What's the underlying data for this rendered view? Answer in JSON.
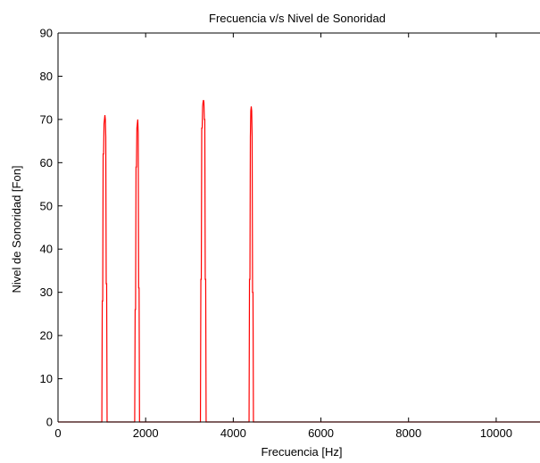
{
  "chart_data": {
    "type": "line",
    "title": "Frecuencia v/s Nivel de Sonoridad",
    "xlabel": "Frecuencia [Hz]",
    "ylabel": "Nivel de Sonoridad [Fon]",
    "xlim": [
      0,
      11000
    ],
    "ylim": [
      0,
      90
    ],
    "xticks": [
      0,
      2000,
      4000,
      6000,
      8000,
      10000
    ],
    "xtick_labels": [
      "0",
      "2000",
      "4000",
      "6000",
      "8000",
      "10000"
    ],
    "yticks": [
      0,
      10,
      20,
      30,
      40,
      50,
      60,
      70,
      80,
      90
    ],
    "ytick_labels": [
      "0",
      "10",
      "20",
      "30",
      "40",
      "50",
      "60",
      "70",
      "80",
      "90"
    ],
    "grid": false,
    "legend": "none",
    "series_color": "#ff0000",
    "series": [
      {
        "x": [
          0,
          1000,
          1010,
          1020,
          1030,
          1040,
          1050,
          1060,
          1070,
          1080,
          1090,
          1100,
          1110,
          1120,
          1130,
          1140,
          1150,
          1750,
          1760,
          1770,
          1780,
          1790,
          1800,
          1810,
          1820,
          1830,
          1840,
          1850,
          1860,
          1870,
          1880,
          1890,
          3250,
          3260,
          3270,
          3280,
          3290,
          3300,
          3310,
          3320,
          3330,
          3340,
          3350,
          3360,
          3370,
          3380,
          3390,
          3400,
          4350,
          4360,
          4370,
          4380,
          4390,
          4400,
          4410,
          4420,
          4430,
          4440,
          4450,
          4460,
          4470,
          4480,
          4490,
          11000
        ],
        "y": [
          0,
          0,
          28,
          28,
          62,
          62,
          69,
          70,
          71,
          70,
          66,
          32,
          32,
          0,
          0,
          0,
          0,
          0,
          26,
          26,
          59,
          59,
          68,
          69,
          70,
          67,
          31,
          31,
          0,
          0,
          0,
          0,
          0,
          33,
          33,
          68,
          68,
          73,
          74,
          74.5,
          74,
          70,
          70,
          33,
          33,
          0,
          0,
          0,
          0,
          0,
          33,
          33,
          66,
          72,
          73,
          72,
          66,
          30,
          30,
          0,
          0,
          0,
          0,
          0
        ]
      }
    ]
  }
}
